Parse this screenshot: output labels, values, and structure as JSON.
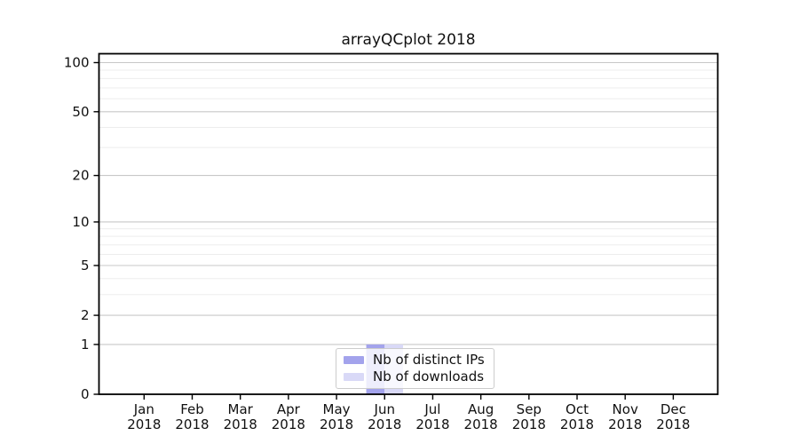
{
  "figure": {
    "background": "#ffffff"
  },
  "chart_data": {
    "type": "bar",
    "title": "arrayQCplot 2018",
    "categories": [
      "Jan",
      "Feb",
      "Mar",
      "Apr",
      "May",
      "Jun",
      "Jul",
      "Aug",
      "Sep",
      "Oct",
      "Nov",
      "Dec"
    ],
    "category_year": "2018",
    "series": [
      {
        "name": "Nb of distinct IPs",
        "color": "#a3a3ec",
        "values": [
          0,
          0,
          0,
          0,
          0,
          1,
          0,
          0,
          0,
          0,
          0,
          0
        ]
      },
      {
        "name": "Nb of downloads",
        "color": "#d9d9f7",
        "values": [
          0,
          0,
          0,
          0,
          0,
          1,
          0,
          0,
          0,
          0,
          0,
          0
        ]
      }
    ],
    "xlabel": "",
    "ylabel": "",
    "y_axis": {
      "scale": "log1p",
      "range": [
        0,
        100
      ],
      "major_ticks": [
        0,
        1,
        2,
        5,
        10,
        20,
        50,
        100
      ],
      "minor_gridlines": [
        3,
        4,
        6,
        7,
        8,
        9,
        30,
        40,
        60,
        70,
        80,
        90
      ]
    },
    "grid": {
      "major_color": "#c8c8c8",
      "minor_color": "#ededed"
    },
    "axis": {
      "spine_color": "#000000",
      "tick_color": "#000000",
      "label_color": "#111111"
    },
    "legend": {
      "location": "lower center inside",
      "border_color": "#cccccc",
      "background": "rgba(255,255,255,0.82)"
    }
  }
}
